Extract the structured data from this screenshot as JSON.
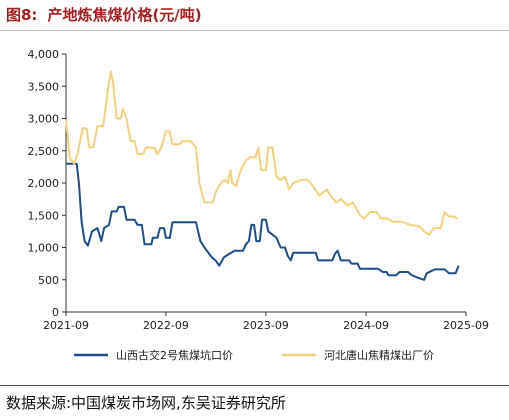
{
  "title": {
    "number": "图8:",
    "text": "产地炼焦煤价格(元/吨)"
  },
  "source": "数据来源:中国煤炭市场网,东吴证券研究所",
  "chart_data": {
    "type": "line",
    "ylim": [
      0,
      4000
    ],
    "y_ticks": [
      0,
      500,
      1000,
      1500,
      2000,
      2500,
      3000,
      3500,
      4000
    ],
    "y_tick_labels": [
      "0",
      "500",
      "1,000",
      "1,500",
      "2,000",
      "2,500",
      "3,000",
      "3,500",
      "4,000"
    ],
    "xlim": [
      "2021-09",
      "2025-09"
    ],
    "x_ticks": [
      "2021-09",
      "2022-09",
      "2023-09",
      "2024-09",
      "2025-09"
    ],
    "legend_position": "bottom",
    "grid": false,
    "series": [
      {
        "name": "山西古交2号焦煤坑口价",
        "color": "#1f4e8c",
        "points": [
          [
            "2021-09-01",
            2300
          ],
          [
            "2021-10-10",
            2300
          ],
          [
            "2021-10-18",
            2000
          ],
          [
            "2021-10-28",
            1400
          ],
          [
            "2021-11-08",
            1100
          ],
          [
            "2021-11-20",
            1030
          ],
          [
            "2021-12-05",
            1250
          ],
          [
            "2021-12-25",
            1300
          ],
          [
            "2022-01-08",
            1100
          ],
          [
            "2022-01-18",
            1300
          ],
          [
            "2022-02-05",
            1350
          ],
          [
            "2022-02-15",
            1560
          ],
          [
            "2022-03-05",
            1560
          ],
          [
            "2022-03-12",
            1630
          ],
          [
            "2022-04-01",
            1630
          ],
          [
            "2022-04-10",
            1430
          ],
          [
            "2022-05-10",
            1430
          ],
          [
            "2022-05-20",
            1350
          ],
          [
            "2022-06-05",
            1350
          ],
          [
            "2022-06-15",
            1050
          ],
          [
            "2022-07-10",
            1050
          ],
          [
            "2022-07-15",
            1150
          ],
          [
            "2022-08-01",
            1150
          ],
          [
            "2022-08-10",
            1300
          ],
          [
            "2022-08-25",
            1300
          ],
          [
            "2022-09-01",
            1150
          ],
          [
            "2022-09-15",
            1150
          ],
          [
            "2022-09-25",
            1390
          ],
          [
            "2022-12-20",
            1390
          ],
          [
            "2023-01-05",
            1100
          ],
          [
            "2023-01-20",
            1000
          ],
          [
            "2023-02-15",
            850
          ],
          [
            "2023-03-01",
            800
          ],
          [
            "2023-03-15",
            720
          ],
          [
            "2023-04-01",
            850
          ],
          [
            "2023-04-20",
            900
          ],
          [
            "2023-05-10",
            950
          ],
          [
            "2023-06-10",
            950
          ],
          [
            "2023-06-20",
            1050
          ],
          [
            "2023-07-01",
            1100
          ],
          [
            "2023-07-10",
            1350
          ],
          [
            "2023-07-20",
            1350
          ],
          [
            "2023-07-28",
            1100
          ],
          [
            "2023-08-10",
            1100
          ],
          [
            "2023-08-18",
            1430
          ],
          [
            "2023-09-01",
            1430
          ],
          [
            "2023-09-10",
            1250
          ],
          [
            "2023-09-25",
            1200
          ],
          [
            "2023-10-10",
            1150
          ],
          [
            "2023-10-25",
            1000
          ],
          [
            "2023-11-10",
            1000
          ],
          [
            "2023-11-20",
            870
          ],
          [
            "2023-12-01",
            800
          ],
          [
            "2023-12-10",
            920
          ],
          [
            "2024-03-01",
            920
          ],
          [
            "2024-03-10",
            800
          ],
          [
            "2024-05-01",
            800
          ],
          [
            "2024-05-10",
            900
          ],
          [
            "2024-05-20",
            950
          ],
          [
            "2024-06-01",
            800
          ],
          [
            "2024-07-01",
            800
          ],
          [
            "2024-07-10",
            750
          ],
          [
            "2024-08-01",
            750
          ],
          [
            "2024-08-10",
            670
          ],
          [
            "2024-10-15",
            670
          ],
          [
            "2024-11-01",
            620
          ],
          [
            "2024-11-15",
            620
          ],
          [
            "2024-11-22",
            570
          ],
          [
            "2024-12-20",
            570
          ],
          [
            "2025-01-01",
            620
          ],
          [
            "2025-02-01",
            620
          ],
          [
            "2025-02-15",
            570
          ],
          [
            "2025-03-10",
            530
          ],
          [
            "2025-04-01",
            500
          ],
          [
            "2025-04-10",
            600
          ],
          [
            "2025-05-10",
            660
          ],
          [
            "2025-06-15",
            660
          ],
          [
            "2025-07-01",
            600
          ],
          [
            "2025-07-25",
            600
          ],
          [
            "2025-08-05",
            720
          ]
        ]
      },
      {
        "name": "河北唐山焦精煤出厂价",
        "color": "#f3d27e",
        "points": [
          [
            "2021-09-01",
            2980
          ],
          [
            "2021-09-15",
            2380
          ],
          [
            "2021-10-01",
            2300
          ],
          [
            "2021-10-15",
            2480
          ],
          [
            "2021-11-01",
            2850
          ],
          [
            "2021-11-15",
            2850
          ],
          [
            "2021-11-25",
            2550
          ],
          [
            "2021-12-10",
            2550
          ],
          [
            "2021-12-25",
            2880
          ],
          [
            "2022-01-15",
            2880
          ],
          [
            "2022-02-01",
            3450
          ],
          [
            "2022-02-12",
            3730
          ],
          [
            "2022-02-20",
            3550
          ],
          [
            "2022-03-05",
            3000
          ],
          [
            "2022-03-20",
            3000
          ],
          [
            "2022-03-28",
            3150
          ],
          [
            "2022-04-10",
            3000
          ],
          [
            "2022-04-25",
            2650
          ],
          [
            "2022-05-10",
            2650
          ],
          [
            "2022-05-20",
            2450
          ],
          [
            "2022-06-10",
            2450
          ],
          [
            "2022-06-20",
            2550
          ],
          [
            "2022-07-20",
            2550
          ],
          [
            "2022-08-01",
            2450
          ],
          [
            "2022-08-15",
            2550
          ],
          [
            "2022-09-01",
            2800
          ],
          [
            "2022-09-15",
            2800
          ],
          [
            "2022-09-25",
            2600
          ],
          [
            "2022-10-20",
            2600
          ],
          [
            "2022-11-01",
            2650
          ],
          [
            "2022-12-01",
            2650
          ],
          [
            "2022-12-20",
            2550
          ],
          [
            "2023-01-01",
            2000
          ],
          [
            "2023-01-20",
            1700
          ],
          [
            "2023-02-20",
            1700
          ],
          [
            "2023-03-01",
            1850
          ],
          [
            "2023-03-20",
            2000
          ],
          [
            "2023-04-01",
            2050
          ],
          [
            "2023-04-15",
            2000
          ],
          [
            "2023-04-25",
            2200
          ],
          [
            "2023-05-01",
            2000
          ],
          [
            "2023-05-15",
            1950
          ],
          [
            "2023-06-01",
            2200
          ],
          [
            "2023-06-20",
            2350
          ],
          [
            "2023-07-05",
            2400
          ],
          [
            "2023-07-25",
            2400
          ],
          [
            "2023-08-05",
            2550
          ],
          [
            "2023-08-15",
            2200
          ],
          [
            "2023-09-01",
            2200
          ],
          [
            "2023-09-10",
            2550
          ],
          [
            "2023-09-25",
            2550
          ],
          [
            "2023-10-10",
            2100
          ],
          [
            "2023-10-25",
            2050
          ],
          [
            "2023-11-10",
            2100
          ],
          [
            "2023-11-25",
            1900
          ],
          [
            "2023-12-10",
            2000
          ],
          [
            "2024-01-10",
            2050
          ],
          [
            "2024-02-01",
            2050
          ],
          [
            "2024-02-20",
            1950
          ],
          [
            "2024-03-15",
            1800
          ],
          [
            "2024-04-10",
            1900
          ],
          [
            "2024-04-25",
            1800
          ],
          [
            "2024-05-15",
            1700
          ],
          [
            "2024-06-01",
            1750
          ],
          [
            "2024-06-25",
            1650
          ],
          [
            "2024-07-15",
            1700
          ],
          [
            "2024-08-10",
            1500
          ],
          [
            "2024-08-25",
            1450
          ],
          [
            "2024-09-15",
            1550
          ],
          [
            "2024-10-10",
            1550
          ],
          [
            "2024-10-25",
            1450
          ],
          [
            "2024-11-15",
            1450
          ],
          [
            "2024-12-10",
            1400
          ],
          [
            "2025-01-10",
            1400
          ],
          [
            "2025-02-10",
            1350
          ],
          [
            "2025-03-15",
            1330
          ],
          [
            "2025-04-01",
            1250
          ],
          [
            "2025-04-20",
            1200
          ],
          [
            "2025-05-05",
            1300
          ],
          [
            "2025-06-01",
            1300
          ],
          [
            "2025-06-15",
            1550
          ],
          [
            "2025-07-01",
            1480
          ],
          [
            "2025-07-20",
            1480
          ],
          [
            "2025-08-01",
            1440
          ]
        ]
      }
    ]
  }
}
